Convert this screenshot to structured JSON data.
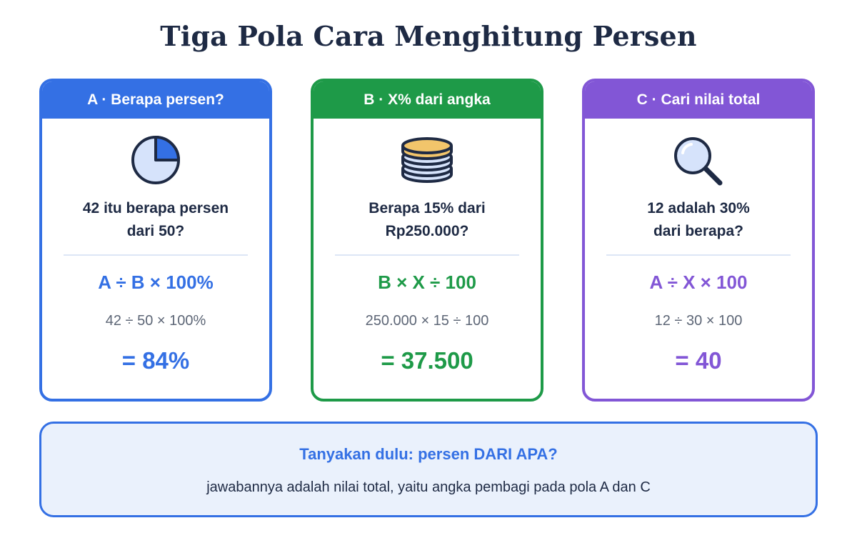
{
  "title": "Tiga Pola Cara Menghitung Persen",
  "colors": {
    "pattern_a": "#3470e4",
    "pattern_b": "#1e9a48",
    "pattern_c": "#8256d6",
    "dark_text": "#1e2a44",
    "note_background": "#eaf1fc"
  },
  "cards": [
    {
      "header": "A · Berapa persen?",
      "icon": "pie-chart-icon",
      "question": [
        "42 itu berapa persen",
        "dari 50?"
      ],
      "formula": "A ÷ B × 100%",
      "calculation": "42 ÷ 50 × 100%",
      "result": "= 84%"
    },
    {
      "header": "B · X% dari angka",
      "icon": "coin-stack-icon",
      "question": [
        "Berapa 15% dari",
        "Rp250.000?"
      ],
      "formula": "B × X ÷ 100",
      "calculation": "250.000 × 15 ÷ 100",
      "result": "= 37.500"
    },
    {
      "header": "C · Cari nilai total",
      "icon": "magnifier-icon",
      "question": [
        "12 adalah 30%",
        "dari berapa?"
      ],
      "formula": "A ÷ X × 100",
      "calculation": "12 ÷ 30 × 100",
      "result": "= 40"
    }
  ],
  "note": {
    "title": "Tanyakan dulu: persen DARI APA?",
    "subtitle": "jawabannya adalah nilai total, yaitu angka pembagi pada pola A dan C"
  }
}
